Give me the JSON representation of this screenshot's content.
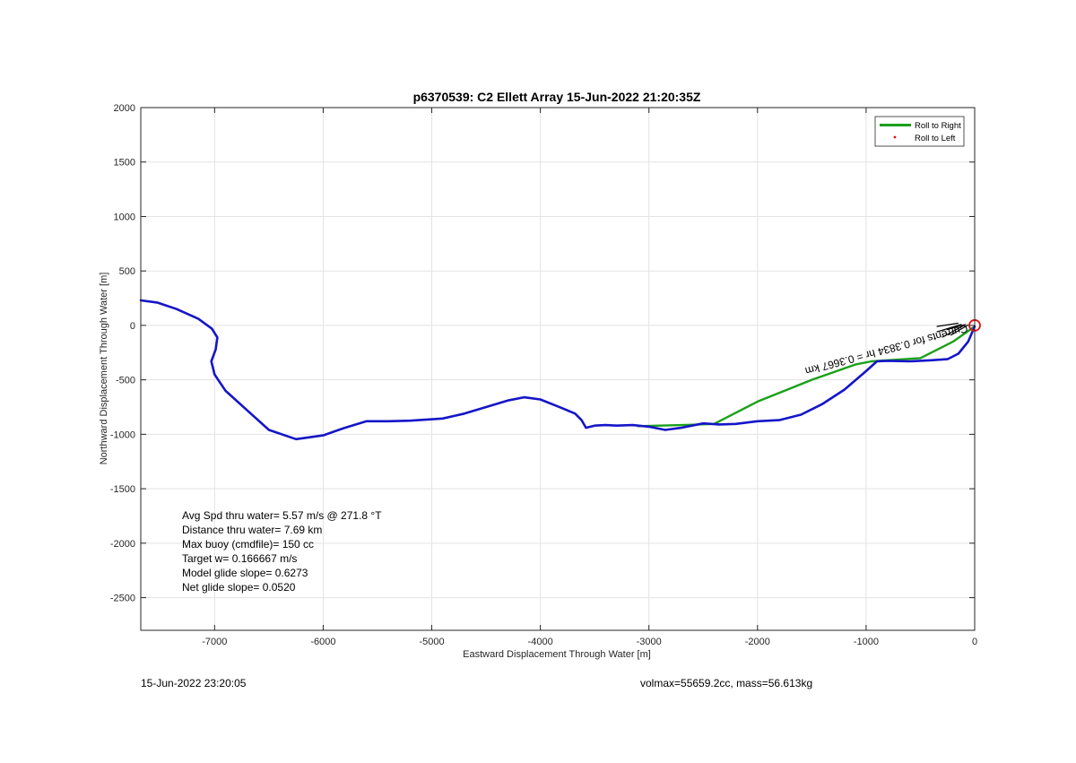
{
  "chart_data": {
    "type": "line",
    "title": "p6370539: C2 Ellett Array 15-Jun-2022 21:20:35Z",
    "xlabel": "Eastward Displacement Through Water [m]",
    "ylabel": "Northward Displacement Through Water [m]",
    "xlim": [
      -7680,
      0
    ],
    "ylim": [
      -2800,
      2000
    ],
    "xticks": [
      -7000,
      -6000,
      -5000,
      -4000,
      -3000,
      -2000,
      -1000,
      0
    ],
    "yticks": [
      -2500,
      -2000,
      -1500,
      -1000,
      -500,
      0,
      500,
      1000,
      1500,
      2000
    ],
    "grid": true,
    "legend_position": "top-right",
    "legend": [
      {
        "label": "Roll to Right",
        "color": "#1aa01a",
        "marker": "line"
      },
      {
        "label": "Roll to Left",
        "color": "#e01010",
        "marker": "dot"
      }
    ],
    "series": [
      {
        "style": "green-line",
        "color": "#1aa01a",
        "x": [
          -3100,
          -2700,
          -2400,
          -2000,
          -1500,
          -1100,
          -950,
          -500,
          -200,
          0
        ],
        "y": [
          -925,
          -915,
          -905,
          -700,
          -500,
          -360,
          -330,
          -300,
          -150,
          -10
        ]
      },
      {
        "style": "blue-track",
        "color": "#1515c8",
        "x": [
          -7680,
          -7530,
          -7350,
          -7150,
          -7025,
          -6975,
          -6990,
          -7030,
          -7000,
          -6900,
          -6700,
          -6500,
          -6250,
          -6000,
          -5800,
          -5600,
          -5400,
          -5200,
          -4900,
          -4700,
          -4500,
          -4300,
          -4150,
          -4000,
          -3800,
          -3680,
          -3620,
          -3580,
          -3500,
          -3400,
          -3300,
          -3150,
          -3000,
          -2850,
          -2700,
          -2500,
          -2350,
          -2200,
          -2000,
          -1800,
          -1600,
          -1400,
          -1200,
          -1000,
          -900,
          -800,
          -600,
          -400,
          -250,
          -150,
          -60,
          0
        ],
        "y": [
          230,
          210,
          150,
          60,
          -30,
          -110,
          -220,
          -330,
          -450,
          -600,
          -780,
          -960,
          -1045,
          -1010,
          -940,
          -880,
          -880,
          -875,
          -855,
          -810,
          -750,
          -690,
          -660,
          -680,
          -760,
          -810,
          -870,
          -940,
          -920,
          -915,
          -920,
          -915,
          -930,
          -960,
          -940,
          -900,
          -910,
          -905,
          -880,
          -870,
          -820,
          -720,
          -590,
          -420,
          -330,
          -325,
          -330,
          -320,
          -310,
          -260,
          -150,
          -10
        ]
      },
      {
        "style": "black-surface-vectors",
        "color": "#000000",
        "x": [
          -350,
          -150,
          -350,
          -120,
          -300,
          -100,
          -260,
          -80,
          -220,
          -60
        ],
        "y": [
          -10,
          20,
          -60,
          10,
          -110,
          0,
          -40,
          10,
          -90,
          5
        ]
      }
    ],
    "marker": {
      "label": "start",
      "x": 0,
      "y": 0,
      "color": "#e01010",
      "shape": "circle"
    },
    "annotation": {
      "text": "Currents for 0.3834 hr = 0.3667 km",
      "rotation_deg": 180,
      "color": "#000000"
    },
    "stats": [
      "Avg Spd thru water=  5.57 m/s @ 271.8 °T",
      "Distance thru water=  7.69 km",
      "Max buoy (cmdfile)= 150 cc",
      "Target w= 0.166667 m/s",
      "Model glide slope= 0.6273",
      "Net glide slope= 0.0520"
    ],
    "footer_left": "15-Jun-2022 23:20:05",
    "footer_right": "volmax=55659.2cc, mass=56.613kg"
  }
}
